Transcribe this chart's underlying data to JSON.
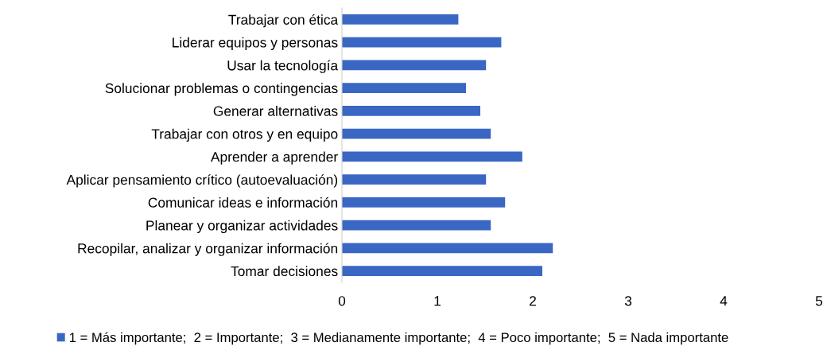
{
  "chart_data": {
    "type": "bar",
    "orientation": "horizontal",
    "categories": [
      "Trabajar con ética",
      "Liderar equipos y personas",
      "Usar la tecnología",
      "Solucionar problemas o contingencias",
      "Generar alternativas",
      "Trabajar con otros y en equipo",
      "Aprender a aprender",
      "Aplicar pensamiento crítico (autoevaluación)",
      "Comunicar ideas e información",
      "Planear y organizar actividades",
      "Recopilar, analizar y organizar información",
      "Tomar decisiones"
    ],
    "series": [
      {
        "name": "1 = Más importante;  2 = Importante;  3 = Medianamente importante;  4 = Poco importante;  5 = Nada importante",
        "color": "#3a67c4",
        "values": [
          1.22,
          1.67,
          1.51,
          1.3,
          1.45,
          1.56,
          1.89,
          1.51,
          1.71,
          1.56,
          2.21,
          2.1
        ]
      }
    ],
    "xlim": [
      0,
      5
    ],
    "xticks": [
      0,
      1,
      2,
      3,
      4,
      5
    ],
    "grid": false,
    "legend": "bottom left"
  }
}
